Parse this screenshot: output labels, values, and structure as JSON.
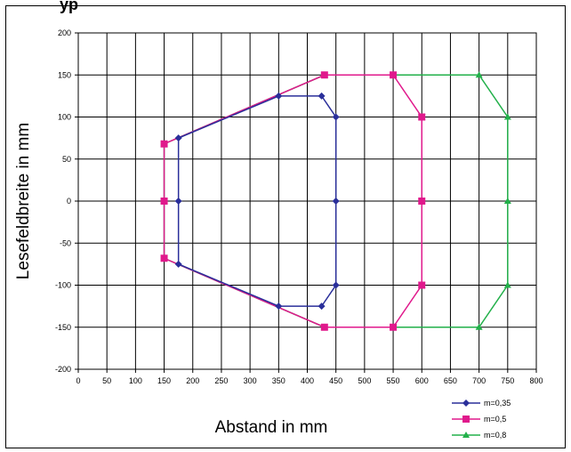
{
  "header": {
    "title_fragment": "yp"
  },
  "chart_data": {
    "type": "line",
    "title": "",
    "xlabel": "Abstand in mm",
    "ylabel": "Lesefeldbreite in mm",
    "xlim": [
      0,
      800
    ],
    "ylim": [
      -200,
      200
    ],
    "xticks": [
      0,
      50,
      100,
      150,
      200,
      250,
      300,
      350,
      400,
      450,
      500,
      550,
      600,
      650,
      700,
      750,
      800
    ],
    "yticks": [
      200,
      150,
      100,
      50,
      0,
      -50,
      -100,
      -150,
      -200
    ],
    "grid": true,
    "legend_position": "bottom-right",
    "series": [
      {
        "name": "m=0,35",
        "color": "#2a2f9a",
        "marker": "diamond",
        "points": [
          [
            175,
            75
          ],
          [
            350,
            125
          ],
          [
            425,
            125
          ],
          [
            450,
            100
          ],
          [
            450,
            0
          ],
          [
            450,
            -100
          ],
          [
            425,
            -125
          ],
          [
            350,
            -125
          ],
          [
            175,
            -75
          ],
          [
            175,
            0
          ],
          [
            175,
            75
          ]
        ]
      },
      {
        "name": "m=0,5",
        "color": "#e0198c",
        "marker": "square",
        "points": [
          [
            150,
            68
          ],
          [
            430,
            150
          ],
          [
            550,
            150
          ],
          [
            600,
            100
          ],
          [
            600,
            0
          ],
          [
            600,
            -100
          ],
          [
            550,
            -150
          ],
          [
            430,
            -150
          ],
          [
            150,
            -68
          ],
          [
            150,
            0
          ],
          [
            150,
            68
          ]
        ]
      },
      {
        "name": "m=0,8",
        "color": "#22b04a",
        "marker": "triangle",
        "points": [
          [
            150,
            68
          ],
          [
            430,
            150
          ],
          [
            700,
            150
          ],
          [
            750,
            100
          ],
          [
            750,
            0
          ],
          [
            750,
            -100
          ],
          [
            700,
            -150
          ],
          [
            430,
            -150
          ],
          [
            150,
            -68
          ],
          [
            150,
            0
          ],
          [
            150,
            68
          ]
        ]
      }
    ]
  }
}
